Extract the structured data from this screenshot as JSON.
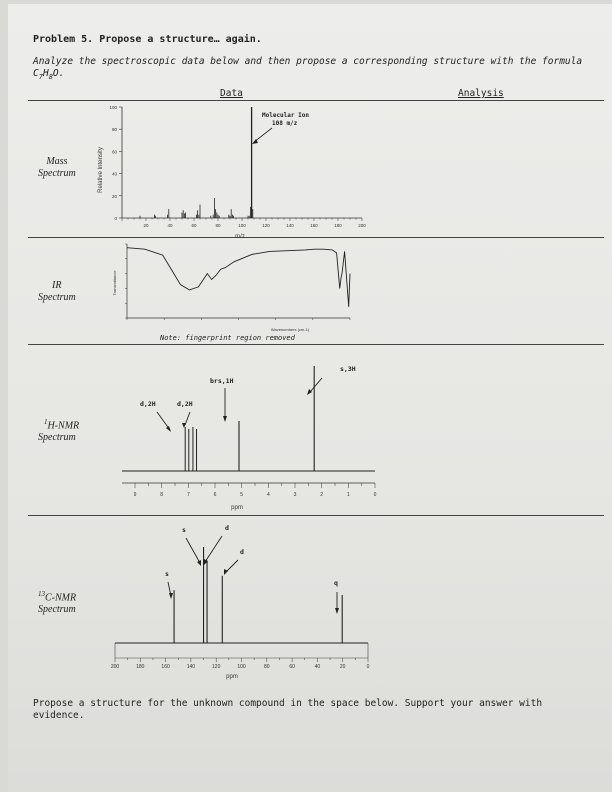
{
  "title": "Problem 5. Propose a structure… again.",
  "intro_pre": "Analyze the spectroscopic data below and then propose a corresponding structure with the formula C",
  "formula_c": "7",
  "formula_h_label": "H",
  "formula_h": "8",
  "formula_o_label": "O.",
  "headers": {
    "data": "Data",
    "analysis": "Analysis"
  },
  "rows": {
    "mass": [
      "Mass",
      "Spectrum"
    ],
    "ir": [
      "IR",
      "Spectrum"
    ],
    "hnmr_sup": "1",
    "hnmr": [
      "H-NMR",
      "Spectrum"
    ],
    "cnmr_sup": "13",
    "cnmr": [
      "C-NMR",
      "Spectrum"
    ]
  },
  "mass_spectrum": {
    "ylabel": "Relative Intensity",
    "xlabel": "m/z",
    "yticks": [
      "0",
      "20",
      "40",
      "60",
      "80",
      "100"
    ],
    "xticks": [
      "20",
      "40",
      "60",
      "80",
      "100",
      "120",
      "140",
      "160",
      "180",
      "200"
    ],
    "annotation": [
      "Molecular Ion",
      "108 m/z"
    ]
  },
  "ir_spectrum": {
    "ylabel": "Transmittance",
    "xlabel": "Wavenumbers (cm-1)",
    "note": "Note: fingerprint region removed"
  },
  "hnmr_spectrum": {
    "xlabel": "ppm",
    "xticks": [
      "9",
      "8",
      "7",
      "6",
      "5",
      "4",
      "3",
      "2",
      "1",
      "0"
    ],
    "labels": {
      "d1": "d,2H",
      "d2": "d,2H",
      "brs": "brs,1H",
      "s3": "s,3H"
    }
  },
  "cnmr_spectrum": {
    "xlabel": "ppm",
    "xticks": [
      "200",
      "180",
      "160",
      "140",
      "120",
      "100",
      "80",
      "60",
      "40",
      "20",
      "0"
    ],
    "labels": {
      "s1": "s",
      "s2": "s",
      "d1": "d",
      "d2": "d",
      "q": "q"
    }
  },
  "footer": "Propose a structure for the unknown compound in the space below.  Support your answer with evidence.",
  "chart_data": [
    {
      "type": "bar",
      "xlabel": "m/z",
      "ylabel": "Relative Intensity",
      "xlim": [
        0,
        200
      ],
      "ylim": [
        0,
        100
      ],
      "x": [
        15,
        27,
        28,
        38,
        39,
        50,
        51,
        52,
        53,
        62,
        63,
        64,
        65,
        74,
        76,
        77,
        78,
        79,
        80,
        81,
        89,
        90,
        91,
        92,
        93,
        105,
        106,
        107,
        108,
        109
      ],
      "values": [
        2,
        3,
        2,
        3,
        8,
        5,
        7,
        4,
        5,
        3,
        7,
        3,
        12,
        2,
        3,
        18,
        8,
        5,
        3,
        2,
        3,
        2,
        8,
        3,
        2,
        2,
        2,
        10,
        100,
        8
      ]
    },
    {
      "type": "line",
      "xlabel": "Wavenumbers (cm-1)",
      "ylabel": "Transmittance",
      "x": [
        4000,
        3800,
        3600,
        3500,
        3400,
        3300,
        3200,
        3100,
        3050,
        3000,
        2950,
        2900,
        2800,
        2600,
        2400,
        2200,
        2000,
        1900,
        1800,
        1700,
        1650,
        1615,
        1600,
        1590,
        1560,
        1515,
        1510,
        1500
      ],
      "values": [
        95,
        93,
        85,
        65,
        45,
        38,
        42,
        60,
        52,
        58,
        66,
        68,
        76,
        86,
        90,
        91,
        92,
        93,
        93,
        92,
        88,
        40,
        55,
        60,
        90,
        15,
        30,
        60
      ]
    },
    {
      "type": "bar",
      "xlabel": "ppm",
      "xlim": [
        9,
        0
      ],
      "x": [
        7.05,
        6.76,
        5.1,
        2.28
      ],
      "values": [
        2,
        2,
        1,
        3
      ],
      "series": [
        {
          "values": [
            2,
            2,
            1,
            3
          ]
        }
      ]
    },
    {
      "type": "bar",
      "xlabel": "ppm",
      "xlim": [
        200,
        0
      ],
      "x": [
        153.3,
        130.0,
        130.0,
        115.2,
        20.4
      ],
      "values": [
        0.55,
        1.0,
        0.85,
        0.7,
        0.5
      ]
    }
  ]
}
